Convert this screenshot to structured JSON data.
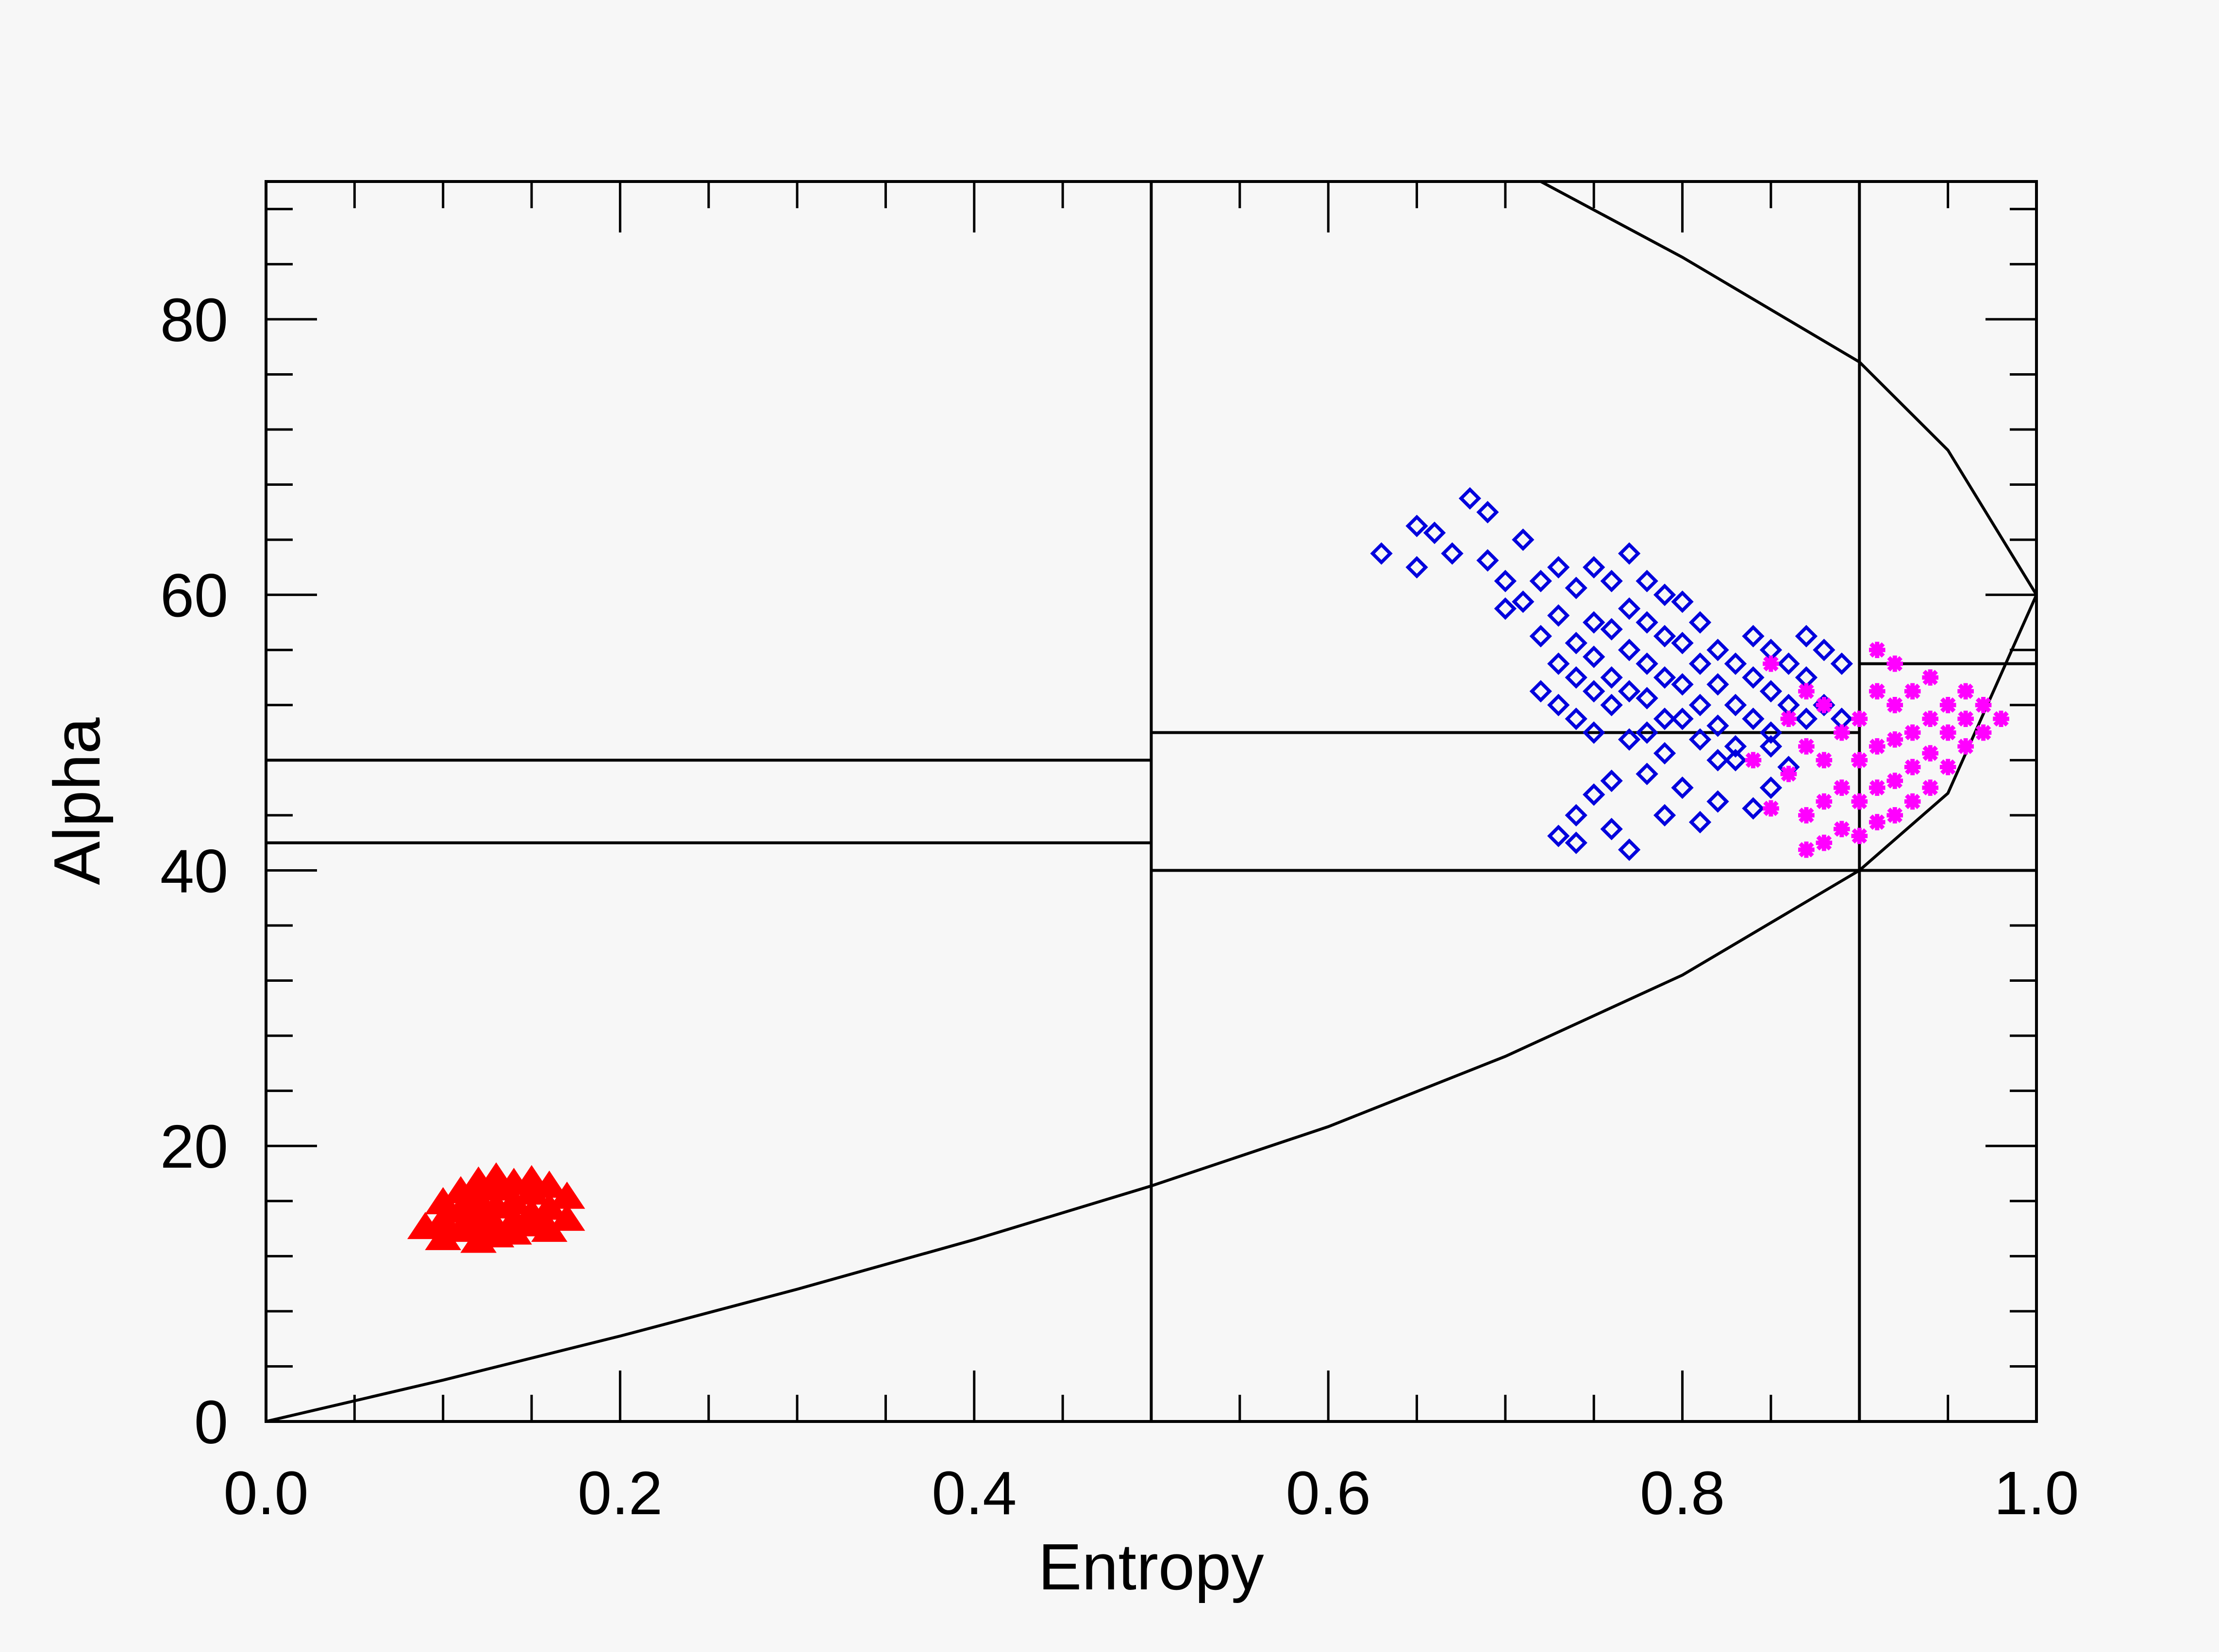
{
  "chart_data": {
    "type": "scatter",
    "title": "",
    "xlabel": "Entropy",
    "ylabel": "Alpha",
    "xlim": [
      0.0,
      1.0
    ],
    "ylim": [
      0,
      90
    ],
    "grid": false,
    "legend": "none",
    "x_ticks": [
      {
        "value": 0.0,
        "label": "0.0"
      },
      {
        "value": 0.2,
        "label": "0.2"
      },
      {
        "value": 0.4,
        "label": "0.4"
      },
      {
        "value": 0.6,
        "label": "0.6"
      },
      {
        "value": 0.8,
        "label": "0.8"
      },
      {
        "value": 1.0,
        "label": "1.0"
      }
    ],
    "y_ticks": [
      {
        "value": 0,
        "label": "0"
      },
      {
        "value": 20,
        "label": "20"
      },
      {
        "value": 40,
        "label": "40"
      },
      {
        "value": 60,
        "label": "60"
      },
      {
        "value": 80,
        "label": "80"
      }
    ],
    "zone_boundaries": {
      "vertical": [
        {
          "x": 0.5
        },
        {
          "x": 0.9
        }
      ],
      "horizontal": [
        {
          "y": 48,
          "x_from": 0.0,
          "x_to": 0.5
        },
        {
          "y": 42,
          "x_from": 0.0,
          "x_to": 0.5
        },
        {
          "y": 50,
          "x_from": 0.5,
          "x_to": 0.9
        },
        {
          "y": 40,
          "x_from": 0.5,
          "x_to": 1.0
        },
        {
          "y": 55,
          "x_from": 0.9,
          "x_to": 1.0
        }
      ]
    },
    "feasible_boundary": {
      "lower": [
        [
          0.0,
          0
        ],
        [
          0.1,
          3.0
        ],
        [
          0.2,
          6.2
        ],
        [
          0.3,
          9.6
        ],
        [
          0.4,
          13.2
        ],
        [
          0.5,
          17.1
        ],
        [
          0.6,
          21.4
        ],
        [
          0.7,
          26.5
        ],
        [
          0.8,
          32.4
        ],
        [
          0.9,
          40.0
        ],
        [
          0.95,
          45.6
        ],
        [
          1.0,
          60.0
        ]
      ],
      "upper": [
        [
          0.72,
          90
        ],
        [
          0.8,
          84.5
        ],
        [
          0.9,
          76.9
        ],
        [
          0.95,
          70.5
        ],
        [
          1.0,
          60.0
        ]
      ]
    },
    "series": [
      {
        "color": "#ff0000",
        "marker": "triangle",
        "points": [
          [
            0.09,
            14.0
          ],
          [
            0.1,
            14.5
          ],
          [
            0.1,
            13.2
          ],
          [
            0.11,
            15.2
          ],
          [
            0.11,
            13.8
          ],
          [
            0.12,
            16.0
          ],
          [
            0.12,
            14.2
          ],
          [
            0.12,
            13.0
          ],
          [
            0.13,
            16.8
          ],
          [
            0.13,
            15.5
          ],
          [
            0.13,
            14.0
          ],
          [
            0.14,
            17.2
          ],
          [
            0.14,
            15.8
          ],
          [
            0.14,
            13.6
          ],
          [
            0.15,
            16.5
          ],
          [
            0.15,
            15.0
          ],
          [
            0.15,
            14.2
          ],
          [
            0.16,
            17.0
          ],
          [
            0.16,
            15.4
          ],
          [
            0.16,
            13.8
          ],
          [
            0.17,
            16.2
          ],
          [
            0.17,
            14.6
          ],
          [
            0.12,
            17.3
          ],
          [
            0.13,
            17.6
          ],
          [
            0.15,
            17.4
          ],
          [
            0.11,
            16.6
          ],
          [
            0.1,
            15.8
          ],
          [
            0.14,
            14.5
          ],
          [
            0.12,
            15.0
          ],
          [
            0.13,
            13.4
          ]
        ]
      },
      {
        "color": "#0000dd",
        "marker": "diamond",
        "points": [
          [
            0.63,
            63
          ],
          [
            0.65,
            65
          ],
          [
            0.65,
            62
          ],
          [
            0.66,
            64.5
          ],
          [
            0.67,
            63
          ],
          [
            0.68,
            67
          ],
          [
            0.69,
            66
          ],
          [
            0.69,
            62.5
          ],
          [
            0.7,
            59
          ],
          [
            0.7,
            61
          ],
          [
            0.71,
            64
          ],
          [
            0.71,
            59.5
          ],
          [
            0.72,
            61
          ],
          [
            0.72,
            57
          ],
          [
            0.72,
            53
          ],
          [
            0.73,
            62
          ],
          [
            0.73,
            58.5
          ],
          [
            0.73,
            55
          ],
          [
            0.73,
            52
          ],
          [
            0.74,
            60.5
          ],
          [
            0.74,
            56.5
          ],
          [
            0.74,
            54
          ],
          [
            0.74,
            51
          ],
          [
            0.75,
            62
          ],
          [
            0.75,
            58
          ],
          [
            0.75,
            55.5
          ],
          [
            0.75,
            53
          ],
          [
            0.75,
            50
          ],
          [
            0.76,
            61
          ],
          [
            0.76,
            57.5
          ],
          [
            0.76,
            54
          ],
          [
            0.76,
            52
          ],
          [
            0.77,
            63
          ],
          [
            0.77,
            59
          ],
          [
            0.77,
            56
          ],
          [
            0.77,
            53
          ],
          [
            0.77,
            49.5
          ],
          [
            0.78,
            61
          ],
          [
            0.78,
            58
          ],
          [
            0.78,
            55
          ],
          [
            0.78,
            52.5
          ],
          [
            0.78,
            50
          ],
          [
            0.79,
            60
          ],
          [
            0.79,
            57
          ],
          [
            0.79,
            54
          ],
          [
            0.79,
            51
          ],
          [
            0.79,
            48.5
          ],
          [
            0.8,
            59.5
          ],
          [
            0.8,
            56.5
          ],
          [
            0.8,
            53.5
          ],
          [
            0.8,
            51
          ],
          [
            0.81,
            58
          ],
          [
            0.81,
            55
          ],
          [
            0.81,
            52
          ],
          [
            0.81,
            49.5
          ],
          [
            0.82,
            56
          ],
          [
            0.82,
            53.5
          ],
          [
            0.82,
            50.5
          ],
          [
            0.82,
            48
          ],
          [
            0.83,
            55
          ],
          [
            0.83,
            52
          ],
          [
            0.83,
            49
          ],
          [
            0.84,
            57
          ],
          [
            0.84,
            54
          ],
          [
            0.84,
            51
          ],
          [
            0.85,
            56
          ],
          [
            0.85,
            53
          ],
          [
            0.85,
            50
          ],
          [
            0.86,
            55
          ],
          [
            0.86,
            52
          ],
          [
            0.87,
            57
          ],
          [
            0.87,
            54
          ],
          [
            0.87,
            51
          ],
          [
            0.88,
            56
          ],
          [
            0.88,
            52
          ],
          [
            0.89,
            55
          ],
          [
            0.89,
            51
          ],
          [
            0.73,
            42.5
          ],
          [
            0.74,
            44
          ],
          [
            0.74,
            42
          ],
          [
            0.75,
            45.5
          ],
          [
            0.76,
            43
          ],
          [
            0.76,
            46.5
          ],
          [
            0.77,
            41.5
          ],
          [
            0.78,
            47
          ],
          [
            0.79,
            44
          ],
          [
            0.8,
            46
          ],
          [
            0.81,
            43.5
          ],
          [
            0.82,
            45
          ],
          [
            0.83,
            48
          ],
          [
            0.84,
            44.5
          ],
          [
            0.85,
            46
          ],
          [
            0.86,
            47.5
          ],
          [
            0.85,
            49
          ]
        ]
      },
      {
        "color": "#ff00ff",
        "marker": "star",
        "points": [
          [
            0.84,
            48
          ],
          [
            0.85,
            55
          ],
          [
            0.85,
            44.5
          ],
          [
            0.86,
            51
          ],
          [
            0.86,
            47
          ],
          [
            0.87,
            53
          ],
          [
            0.87,
            49
          ],
          [
            0.87,
            44
          ],
          [
            0.87,
            41.5
          ],
          [
            0.88,
            52
          ],
          [
            0.88,
            48
          ],
          [
            0.88,
            45
          ],
          [
            0.88,
            42
          ],
          [
            0.89,
            50
          ],
          [
            0.89,
            46
          ],
          [
            0.89,
            43
          ],
          [
            0.9,
            51
          ],
          [
            0.9,
            48
          ],
          [
            0.9,
            45
          ],
          [
            0.9,
            42.5
          ],
          [
            0.91,
            56
          ],
          [
            0.91,
            53
          ],
          [
            0.91,
            49
          ],
          [
            0.91,
            46
          ],
          [
            0.91,
            43.5
          ],
          [
            0.92,
            55
          ],
          [
            0.92,
            52
          ],
          [
            0.92,
            49.5
          ],
          [
            0.92,
            46.5
          ],
          [
            0.92,
            44
          ],
          [
            0.93,
            53
          ],
          [
            0.93,
            50
          ],
          [
            0.93,
            47.5
          ],
          [
            0.93,
            45
          ],
          [
            0.94,
            54
          ],
          [
            0.94,
            51
          ],
          [
            0.94,
            48.5
          ],
          [
            0.94,
            46
          ],
          [
            0.95,
            52
          ],
          [
            0.95,
            50
          ],
          [
            0.95,
            47.5
          ],
          [
            0.96,
            53
          ],
          [
            0.96,
            51
          ],
          [
            0.96,
            49
          ],
          [
            0.97,
            52
          ],
          [
            0.97,
            50
          ],
          [
            0.98,
            51
          ]
        ]
      }
    ]
  }
}
